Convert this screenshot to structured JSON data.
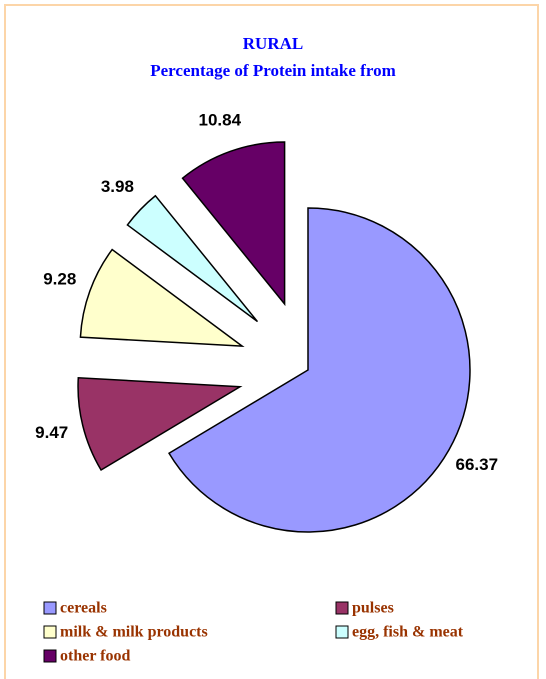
{
  "chart_data": {
    "type": "pie",
    "title": "RURAL",
    "subtitle": "Percentage of Protein intake from",
    "categories": [
      "cereals",
      "pulses",
      "milk & milk products",
      "egg, fish & meat",
      "other food"
    ],
    "values": [
      66.37,
      9.47,
      9.28,
      3.98,
      10.84
    ],
    "colors": [
      "#9999ff",
      "#993366",
      "#ffffcc",
      "#ccffff",
      "#660066"
    ],
    "exploded": [
      false,
      true,
      true,
      true,
      true
    ],
    "legend": "bottom"
  }
}
